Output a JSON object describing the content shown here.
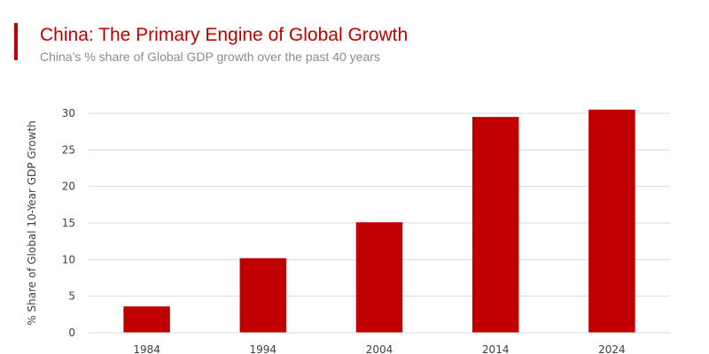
{
  "header": {
    "title": "China: The Primary Engine of Global Growth",
    "subtitle": "China’s % share of Global GDP growth over the past 40 years"
  },
  "colors": {
    "accent": "#c00000",
    "bar": "#c00000",
    "grid": "#d9d9d9",
    "subtitle": "#8c8c8c"
  },
  "chart_data": {
    "type": "bar",
    "title": "China: The Primary Engine of Global Growth",
    "subtitle": "China’s % share of Global GDP growth over the past 40 years",
    "categories": [
      "1984",
      "1994",
      "2004",
      "2014",
      "2024"
    ],
    "values": [
      3.6,
      10.2,
      15.1,
      29.5,
      30.5
    ],
    "xlabel": "",
    "ylabel": "% Share of Global 10-Year GDP Growth",
    "ylim": [
      0,
      30
    ],
    "yticks": [
      0,
      5,
      10,
      15,
      20,
      25,
      30
    ],
    "grid": true,
    "legend": "none"
  }
}
